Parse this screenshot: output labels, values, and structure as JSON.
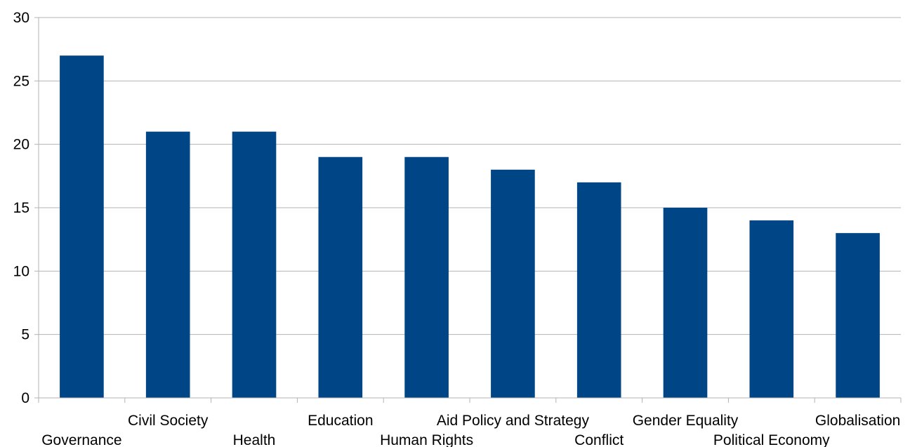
{
  "chart_data": {
    "type": "bar",
    "categories": [
      "Governance",
      "Civil Society",
      "Health",
      "Education",
      "Human Rights",
      "Aid Policy and Strategy",
      "Conflict",
      "Gender Equality",
      "Political Economy",
      "Globalisation"
    ],
    "values": [
      27,
      21,
      21,
      19,
      19,
      18,
      17,
      15,
      14,
      13
    ],
    "ylim": [
      0,
      30
    ],
    "yticks": [
      0,
      5,
      10,
      15,
      20,
      25,
      30
    ],
    "bar_color": "#004586",
    "grid": true,
    "legend": "none"
  }
}
